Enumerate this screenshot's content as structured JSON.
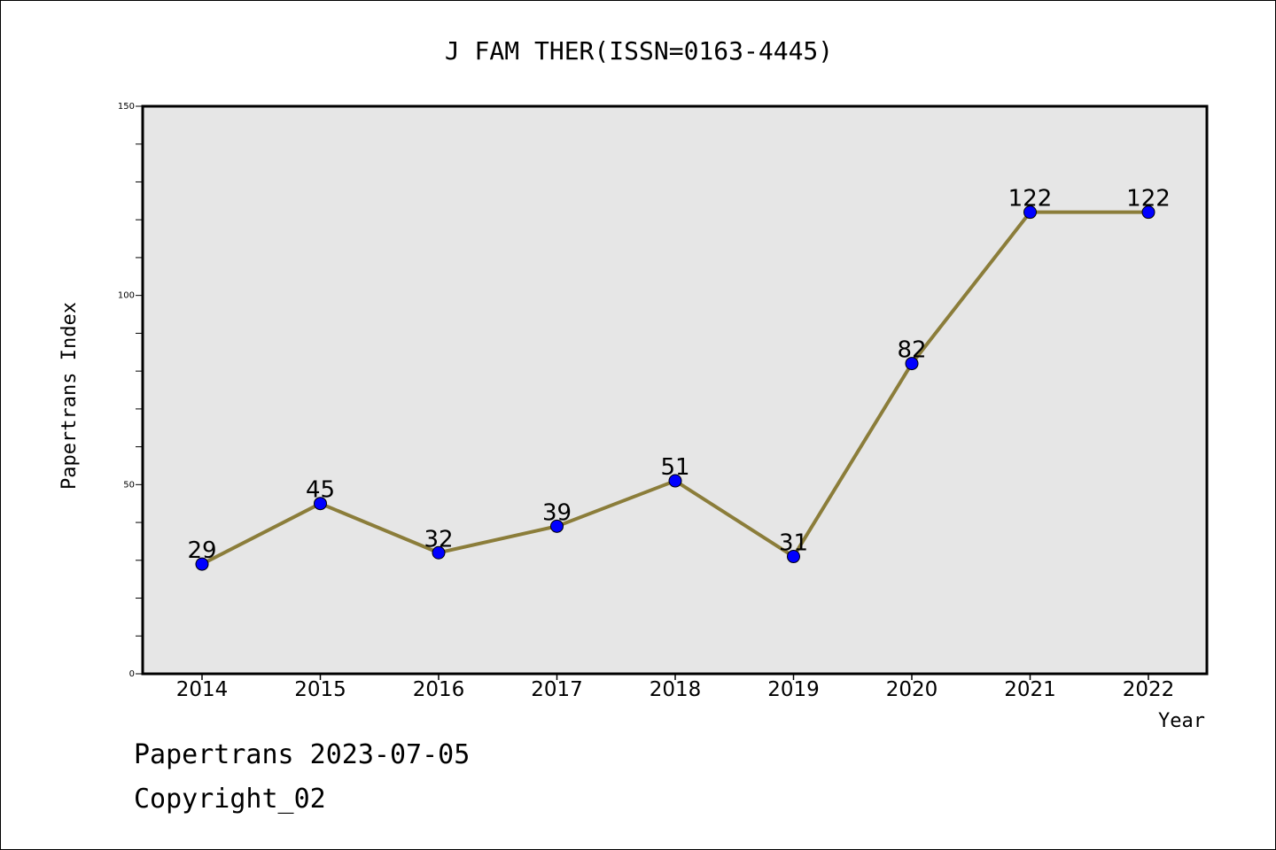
{
  "chart_data": {
    "type": "line",
    "title": "J FAM THER(ISSN=0163-4445)",
    "xlabel": "Year",
    "ylabel": "Papertrans Index",
    "categories": [
      "2014",
      "2015",
      "2016",
      "2017",
      "2018",
      "2019",
      "2020",
      "2021",
      "2022"
    ],
    "series": [
      {
        "name": "Papertrans Index",
        "values": [
          29,
          45,
          32,
          39,
          51,
          31,
          82,
          122,
          122
        ]
      }
    ],
    "ylim": [
      0,
      150
    ],
    "yticks": [
      0,
      50,
      100,
      150
    ],
    "grid": false,
    "legend": "none",
    "colors": {
      "line": "#8B7D3A",
      "marker": "#0000FF",
      "plot_background": "#E6E6E6",
      "frame": "#000000"
    }
  },
  "footer": {
    "date_text": "Papertrans 2023-07-05",
    "copyright_text": "Copyright_02"
  }
}
